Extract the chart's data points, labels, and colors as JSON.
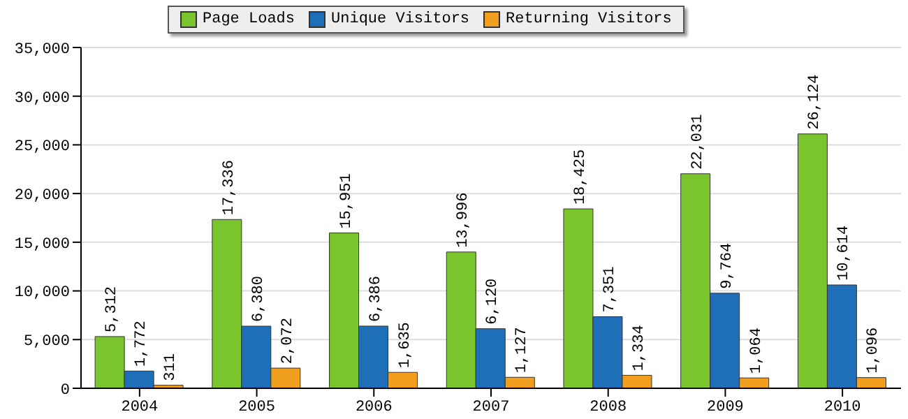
{
  "chart_data": {
    "type": "bar",
    "categories": [
      "2004",
      "2005",
      "2006",
      "2007",
      "2008",
      "2009",
      "2010"
    ],
    "series": [
      {
        "name": "Page Loads",
        "color": "#7ac52d",
        "values": [
          5312,
          17336,
          15951,
          13996,
          18425,
          22031,
          26124
        ],
        "value_labels": [
          "5,312",
          "17,336",
          "15,951",
          "13,996",
          "18,425",
          "22,031",
          "26,124"
        ]
      },
      {
        "name": "Unique Visitors",
        "color": "#1f6fb8",
        "values": [
          1772,
          6380,
          6386,
          6120,
          7351,
          9764,
          10614
        ],
        "value_labels": [
          "1,772",
          "6,380",
          "6,386",
          "6,120",
          "7,351",
          "9,764",
          "10,614"
        ]
      },
      {
        "name": "Returning Visitors",
        "color": "#f0a01e",
        "values": [
          311,
          2072,
          1635,
          1127,
          1334,
          1064,
          1096
        ],
        "value_labels": [
          "311",
          "2,072",
          "1,635",
          "1,127",
          "1,334",
          "1,064",
          "1,096"
        ]
      }
    ],
    "ylim": [
      0,
      35000
    ],
    "yticks": [
      {
        "value": 0,
        "label": "0"
      },
      {
        "value": 5000,
        "label": "5,000"
      },
      {
        "value": 10000,
        "label": "10,000"
      },
      {
        "value": 15000,
        "label": "15,000"
      },
      {
        "value": 20000,
        "label": "20,000"
      },
      {
        "value": 25000,
        "label": "25,000"
      },
      {
        "value": 30000,
        "label": "30,000"
      },
      {
        "value": 35000,
        "label": "35,000"
      }
    ],
    "grid": "y",
    "legend": "top"
  }
}
